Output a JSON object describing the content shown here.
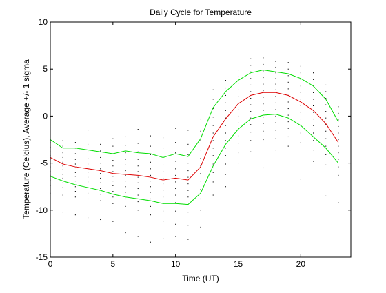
{
  "chart_data": {
    "type": "line",
    "title": "Daily Cycle for Temperature",
    "xlabel": "Time (UT)",
    "ylabel": "Temperature (Celcius), Average +/- 1 sigma",
    "xlim": [
      0,
      24
    ],
    "ylim": [
      -15,
      10
    ],
    "xticks": [
      0,
      5,
      10,
      15,
      20
    ],
    "yticks": [
      -15,
      -10,
      -5,
      0,
      5,
      10
    ],
    "grid": false,
    "legend": "none",
    "x": [
      0,
      1,
      2,
      3,
      4,
      5,
      6,
      7,
      8,
      9,
      10,
      11,
      12,
      13,
      14,
      15,
      16,
      17,
      18,
      19,
      20,
      21,
      22,
      23
    ],
    "series": [
      {
        "role": "upper",
        "color": "#00dd00",
        "values": [
          -2.5,
          -3.4,
          -3.4,
          -3.6,
          -3.8,
          -4.0,
          -3.7,
          -3.9,
          -4.0,
          -4.4,
          -4.0,
          -4.3,
          -2.4,
          0.9,
          2.6,
          3.8,
          4.6,
          4.9,
          4.7,
          4.5,
          4.0,
          3.2,
          1.8,
          -0.6
        ]
      },
      {
        "role": "average",
        "color": "#dd0000",
        "values": [
          -4.4,
          -5.1,
          -5.4,
          -5.6,
          -5.8,
          -6.1,
          -6.2,
          -6.3,
          -6.5,
          -6.8,
          -6.6,
          -6.8,
          -5.4,
          -2.2,
          -0.3,
          1.3,
          2.2,
          2.5,
          2.5,
          2.2,
          1.5,
          0.6,
          -0.8,
          -2.8
        ]
      },
      {
        "role": "lower",
        "color": "#00dd00",
        "values": [
          -6.4,
          -6.9,
          -7.3,
          -7.6,
          -7.9,
          -8.3,
          -8.6,
          -8.8,
          -9.0,
          -9.3,
          -9.3,
          -9.4,
          -8.2,
          -5.3,
          -3.0,
          -1.4,
          -0.3,
          0.1,
          0.2,
          -0.2,
          -1.0,
          -2.2,
          -3.4,
          -5.0
        ]
      }
    ],
    "scatter": {
      "color": "#000000",
      "x": [
        0,
        0,
        0,
        0,
        0,
        0,
        0,
        0,
        0,
        0,
        0,
        0,
        1,
        1,
        1,
        1,
        1,
        1,
        1,
        1,
        1,
        1,
        1,
        1,
        1,
        2,
        2,
        2,
        2,
        2,
        2,
        2,
        2,
        2,
        2,
        2,
        2,
        2,
        3,
        3,
        3,
        3,
        3,
        3,
        3,
        3,
        3,
        3,
        3,
        3,
        3,
        4,
        4,
        4,
        4,
        4,
        4,
        4,
        4,
        4,
        4,
        4,
        4,
        5,
        5,
        5,
        5,
        5,
        5,
        5,
        5,
        5,
        5,
        5,
        5,
        5,
        6,
        6,
        6,
        6,
        6,
        6,
        6,
        6,
        6,
        6,
        6,
        6,
        6,
        7,
        7,
        7,
        7,
        7,
        7,
        7,
        7,
        7,
        7,
        7,
        7,
        7,
        8,
        8,
        8,
        8,
        8,
        8,
        8,
        8,
        8,
        8,
        8,
        8,
        8,
        9,
        9,
        9,
        9,
        9,
        9,
        9,
        9,
        9,
        9,
        9,
        9,
        9,
        10,
        10,
        10,
        10,
        10,
        10,
        10,
        10,
        10,
        10,
        10,
        10,
        10,
        11,
        11,
        11,
        11,
        11,
        11,
        11,
        11,
        11,
        11,
        11,
        11,
        11,
        12,
        12,
        12,
        12,
        12,
        12,
        12,
        12,
        12,
        12,
        12,
        12,
        13,
        13,
        13,
        13,
        13,
        13,
        13,
        13,
        13,
        13,
        13,
        13,
        13,
        13,
        14,
        14,
        14,
        14,
        14,
        14,
        14,
        14,
        14,
        14,
        14,
        14,
        14,
        14,
        15,
        15,
        15,
        15,
        15,
        15,
        15,
        15,
        15,
        15,
        15,
        15,
        15,
        15,
        16,
        16,
        16,
        16,
        16,
        16,
        16,
        16,
        16,
        16,
        16,
        16,
        16,
        16,
        17,
        17,
        17,
        17,
        17,
        17,
        17,
        17,
        17,
        17,
        17,
        17,
        17,
        17,
        18,
        18,
        18,
        18,
        18,
        18,
        18,
        18,
        18,
        18,
        18,
        18,
        18,
        18,
        19,
        19,
        19,
        19,
        19,
        19,
        19,
        19,
        19,
        19,
        19,
        19,
        19,
        20,
        20,
        20,
        20,
        20,
        20,
        20,
        20,
        20,
        20,
        20,
        20,
        20,
        21,
        21,
        21,
        21,
        21,
        21,
        21,
        21,
        21,
        21,
        21,
        21,
        21,
        22,
        22,
        22,
        22,
        22,
        22,
        22,
        22,
        22,
        22,
        22,
        22,
        22,
        23,
        23,
        23,
        23,
        23,
        23,
        23,
        23,
        23,
        23,
        23,
        23
      ],
      "y": [
        -2.8,
        -3.3,
        -3.8,
        -4.2,
        -4.6,
        -5.0,
        -5.4,
        -5.9,
        -6.3,
        -6.8,
        -7.4,
        -8.2,
        -2.6,
        -3.2,
        -3.9,
        -4.4,
        -4.9,
        -5.3,
        -5.7,
        -6.2,
        -6.6,
        -7.1,
        -7.6,
        -8.4,
        -10.2,
        -2.8,
        -3.4,
        -4.0,
        -4.6,
        -5.1,
        -5.5,
        -6.0,
        -6.4,
        -6.9,
        -7.5,
        -8.0,
        -8.6,
        -10.5,
        -1.5,
        -3.0,
        -3.8,
        -4.5,
        -5.1,
        -5.6,
        -6.0,
        -6.5,
        -7.0,
        -7.6,
        -8.2,
        -8.8,
        -10.8,
        -3.0,
        -3.7,
        -4.4,
        -5.0,
        -5.6,
        -6.1,
        -6.6,
        -7.1,
        -7.7,
        -8.3,
        -9.0,
        -11.0,
        -2.4,
        -3.2,
        -4.0,
        -4.7,
        -5.3,
        -5.9,
        -6.4,
        -6.9,
        -7.4,
        -8.0,
        -8.6,
        -9.3,
        -11.2,
        -2.2,
        -3.1,
        -3.9,
        -4.6,
        -5.2,
        -5.8,
        -6.3,
        -6.9,
        -7.5,
        -8.1,
        -8.8,
        -9.6,
        -12.4,
        -1.4,
        -2.9,
        -3.8,
        -4.6,
        -5.3,
        -5.9,
        -6.5,
        -7.1,
        -7.7,
        -8.4,
        -9.1,
        -10.0,
        -12.8,
        -2.1,
        -3.2,
        -4.1,
        -4.9,
        -5.6,
        -6.3,
        -6.9,
        -7.5,
        -8.1,
        -8.8,
        -9.6,
        -10.5,
        -13.4,
        -2.3,
        -3.4,
        -4.4,
        -5.2,
        -5.9,
        -6.6,
        -7.2,
        -7.9,
        -8.6,
        -9.3,
        -10.1,
        -11.2,
        -13.0,
        -1.3,
        -2.8,
        -3.9,
        -4.8,
        -5.6,
        -6.3,
        -7.0,
        -7.7,
        -8.4,
        -9.2,
        -10.1,
        -11.5,
        -12.8,
        -1.5,
        -3.0,
        -4.1,
        -5.0,
        -5.8,
        -6.5,
        -7.2,
        -7.9,
        -8.6,
        -9.4,
        -10.2,
        -11.6,
        -13.1,
        -0.3,
        -1.6,
        -2.6,
        -3.6,
        -4.5,
        -5.3,
        -6.1,
        -6.9,
        -7.8,
        -8.8,
        -10.0,
        -11.8,
        2.8,
        1.8,
        0.8,
        -0.1,
        -1.0,
        -1.8,
        -2.6,
        -3.4,
        -4.2,
        -5.1,
        -6.0,
        -7.0,
        -8.4,
        -5.5,
        3.8,
        3.0,
        2.2,
        1.4,
        0.6,
        -0.2,
        -1.0,
        -1.8,
        -2.6,
        -3.4,
        -4.2,
        -5.1,
        -6.2,
        -7.5,
        4.9,
        4.2,
        3.5,
        2.8,
        2.1,
        1.4,
        0.7,
        0.0,
        -0.7,
        -1.4,
        -2.1,
        -2.9,
        -3.9,
        -5.0,
        6.1,
        5.4,
        4.7,
        4.0,
        3.3,
        2.6,
        1.9,
        1.2,
        0.5,
        -0.2,
        -0.9,
        -1.7,
        -2.6,
        -3.8,
        6.2,
        5.5,
        4.8,
        4.1,
        3.4,
        2.7,
        2.0,
        1.3,
        0.6,
        -0.1,
        -0.8,
        -1.6,
        -2.5,
        -5.5,
        5.8,
        5.2,
        4.6,
        4.0,
        3.4,
        2.8,
        2.1,
        1.4,
        0.7,
        0.0,
        -0.7,
        -1.5,
        -2.4,
        -3.6,
        5.7,
        5.0,
        4.3,
        3.6,
        2.9,
        2.2,
        1.5,
        0.8,
        0.1,
        -0.6,
        -1.3,
        -2.2,
        -3.2,
        5.3,
        4.6,
        3.9,
        3.2,
        2.5,
        1.8,
        1.1,
        0.4,
        -0.3,
        -1.0,
        -1.8,
        -2.8,
        -6.7,
        4.6,
        3.9,
        3.2,
        2.5,
        1.8,
        1.1,
        0.4,
        -0.3,
        -1.0,
        -1.8,
        -2.6,
        -3.6,
        -4.8,
        3.3,
        2.6,
        1.9,
        1.2,
        0.5,
        -0.2,
        -0.9,
        -1.6,
        -2.4,
        -3.2,
        -4.1,
        -5.2,
        -8.5,
        1.0,
        0.3,
        -0.4,
        -1.1,
        -1.8,
        -2.5,
        -3.2,
        -3.9,
        -4.6,
        -5.4,
        -6.3,
        -9.2
      ]
    }
  }
}
